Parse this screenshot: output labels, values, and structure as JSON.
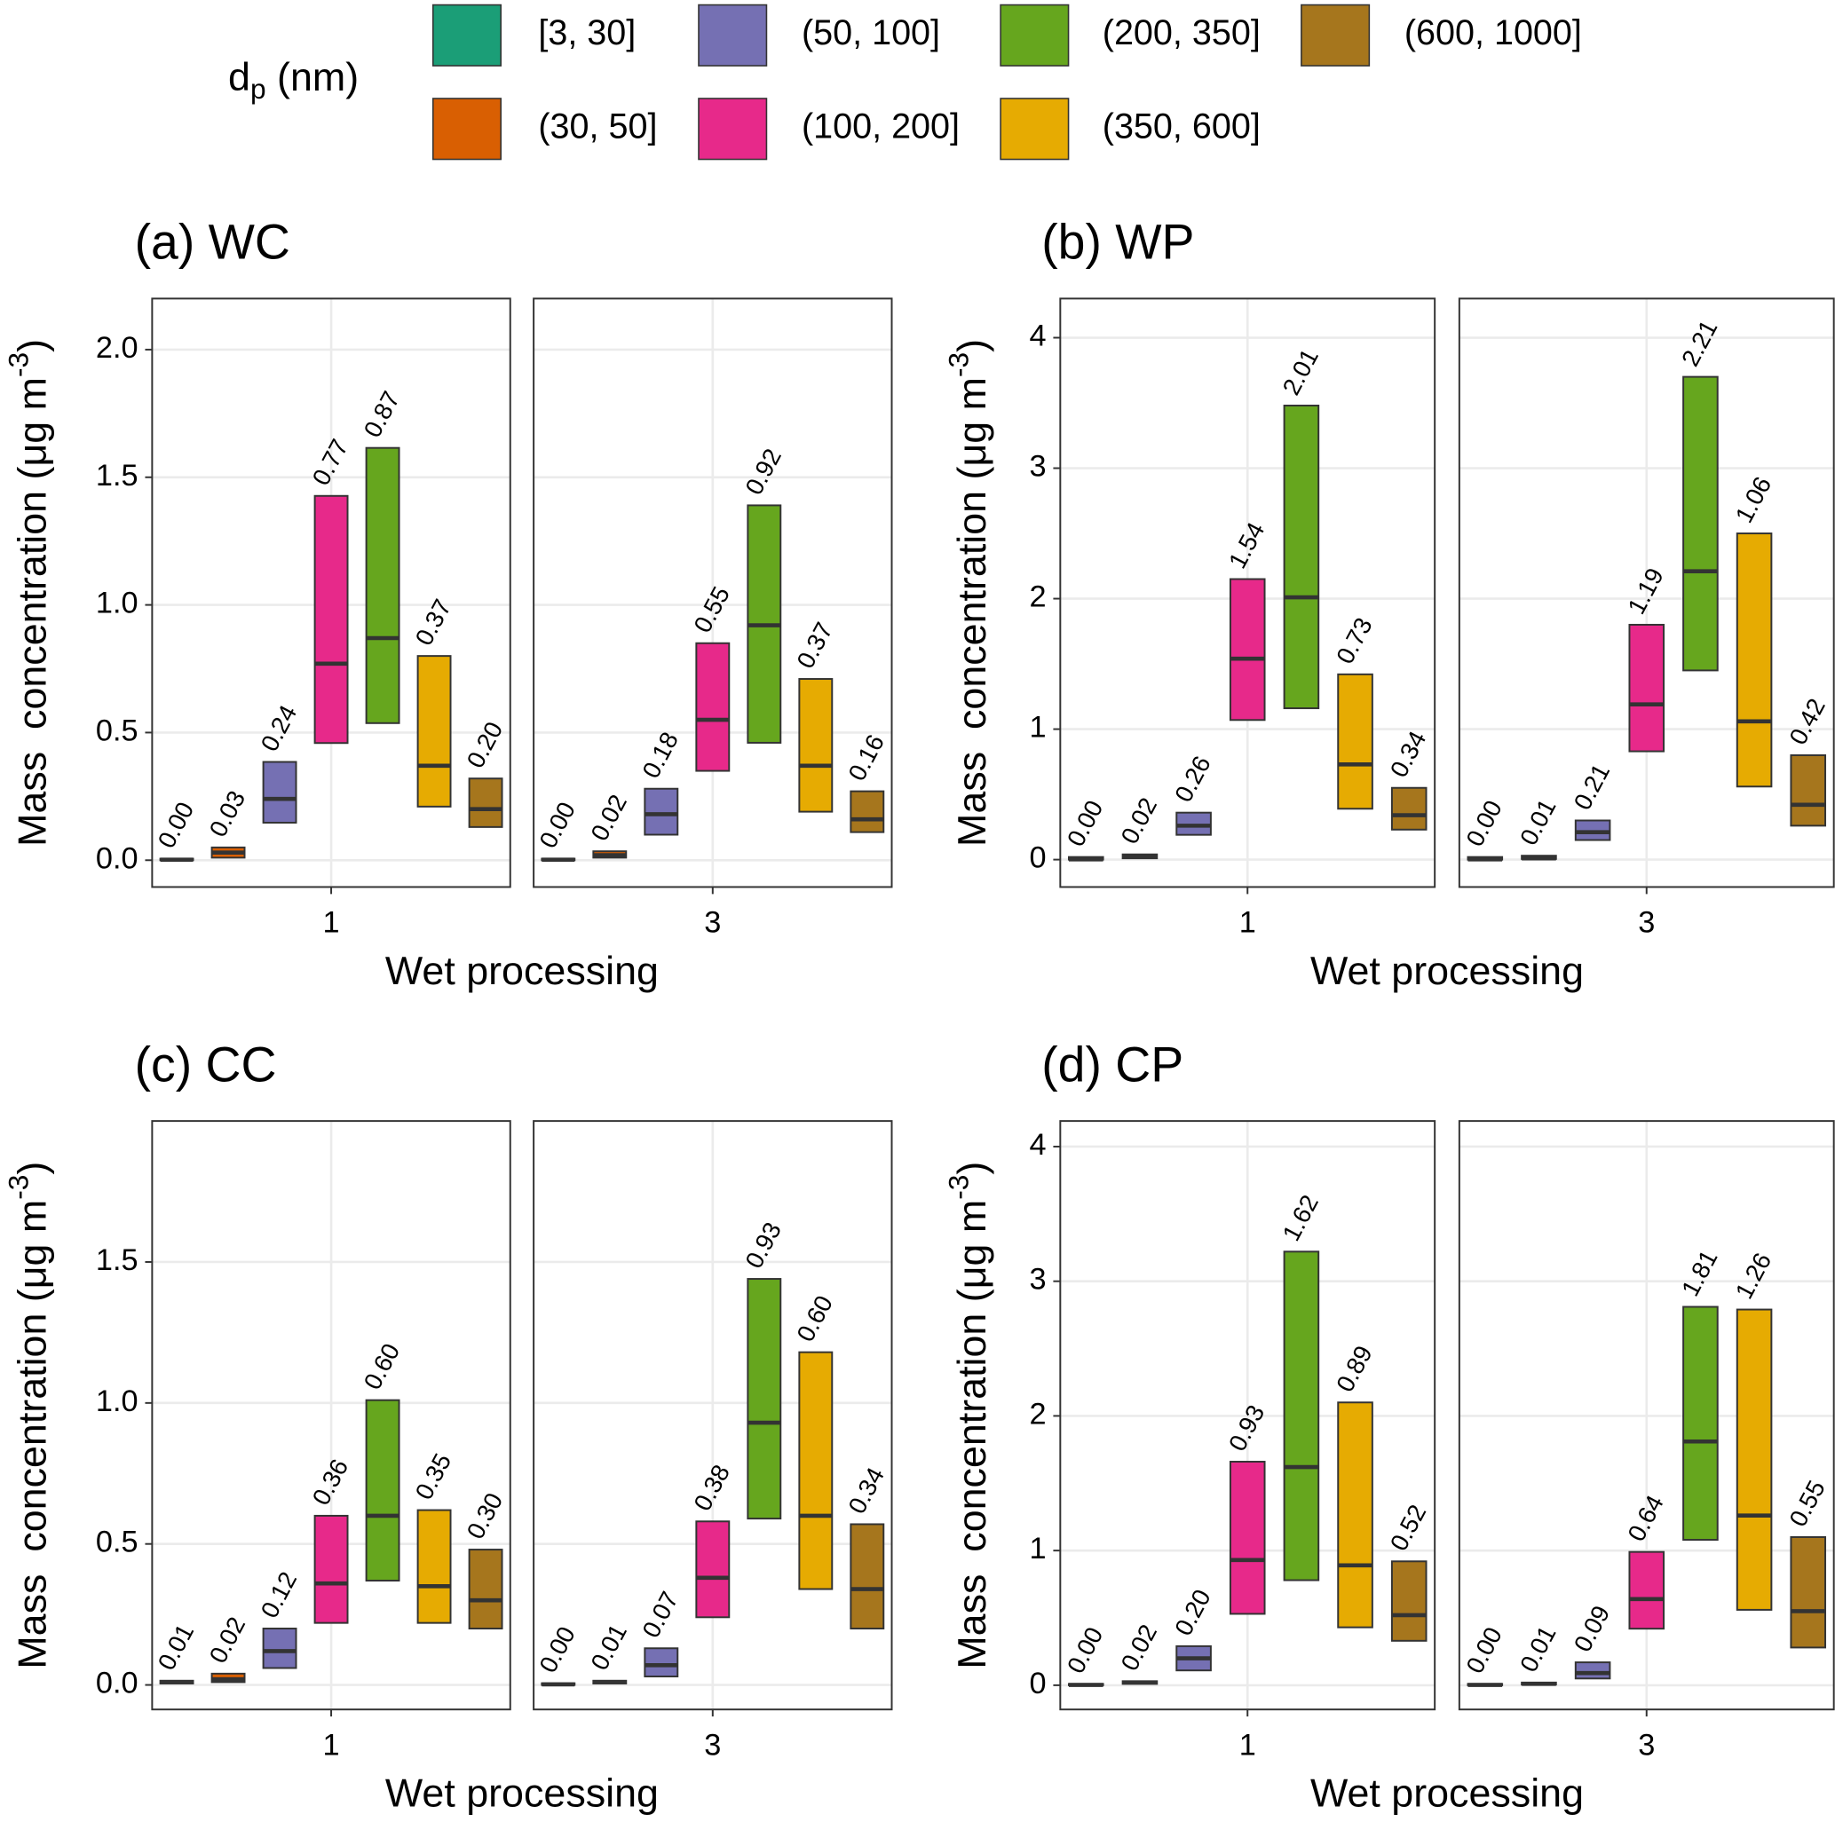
{
  "legend_title": [
    "d",
    "p",
    " (nm)"
  ],
  "chart_data": [
    {
      "type": "box",
      "title": "(a) WC",
      "x_label": "Wet processing",
      "y_label": [
        "Mass  concentration (μg m",
        "-3",
        ")"
      ],
      "categories": [
        "1",
        "3"
      ],
      "ylim": [
        -0.105,
        2.2
      ],
      "yticks": [
        {
          "value": 0,
          "label": "0.0"
        },
        0.5,
        {
          "value": 1,
          "label": "1.0"
        },
        1.5,
        {
          "value": 2,
          "label": "2.0"
        }
      ],
      "grid": true,
      "series": [
        {
          "name": "[3, 30]",
          "color": "#1b9e77",
          "values": [
            0.002,
            0.002
          ],
          "low": [
            0,
            0
          ],
          "high": [
            0.006,
            0.006
          ],
          "value_labels": [
            "0.00",
            "0.00"
          ]
        },
        {
          "name": "(30, 50]",
          "color": "#d95f02",
          "values": [
            0.03,
            0.02
          ],
          "low": [
            0.01,
            0.01
          ],
          "high": [
            0.05,
            0.035
          ],
          "value_labels": [
            "0.03",
            "0.02"
          ]
        },
        {
          "name": "(50, 100]",
          "color": "#7570b3",
          "values": [
            0.24,
            0.18
          ],
          "low": [
            0.147,
            0.1
          ],
          "high": [
            0.385,
            0.28
          ],
          "value_labels": [
            "0.24",
            "0.18"
          ]
        },
        {
          "name": "(100, 200]",
          "color": "#e7298a",
          "values": [
            0.77,
            0.55
          ],
          "low": [
            0.459,
            0.35
          ],
          "high": [
            1.427,
            0.85
          ],
          "value_labels": [
            "0.77",
            "0.55"
          ]
        },
        {
          "name": "(200, 350]",
          "color": "#66a61e",
          "values": [
            0.87,
            0.92
          ],
          "low": [
            0.537,
            0.46
          ],
          "high": [
            1.615,
            1.39
          ],
          "value_labels": [
            "0.87",
            "0.92"
          ]
        },
        {
          "name": "(350, 600]",
          "color": "#e6ab02",
          "values": [
            0.37,
            0.37
          ],
          "low": [
            0.21,
            0.19
          ],
          "high": [
            0.8,
            0.71
          ],
          "value_labels": [
            "0.37",
            "0.37"
          ]
        },
        {
          "name": "(600, 1000]",
          "color": "#a6761d",
          "values": [
            0.2,
            0.16
          ],
          "low": [
            0.13,
            0.11
          ],
          "high": [
            0.32,
            0.27
          ],
          "value_labels": [
            "0.20",
            "0.16"
          ]
        }
      ]
    },
    {
      "type": "box",
      "title": "(b) WP",
      "x_label": "Wet processing",
      "y_label": [
        "Mass  concentration (μg m",
        "-3",
        ")"
      ],
      "categories": [
        "1",
        "3"
      ],
      "ylim": [
        -0.21,
        4.3
      ],
      "yticks": [
        0,
        1,
        2,
        3,
        4
      ],
      "grid": true,
      "series": [
        {
          "name": "[3, 30]",
          "color": "#1b9e77",
          "values": [
            0.002,
            0.002
          ],
          "low": [
            0,
            0
          ],
          "high": [
            0.02,
            0.02
          ],
          "value_labels": [
            "0.00",
            "0.00"
          ]
        },
        {
          "name": "(30, 50]",
          "color": "#d95f02",
          "values": [
            0.02,
            0.01
          ],
          "low": [
            0.01,
            0.005
          ],
          "high": [
            0.04,
            0.03
          ],
          "value_labels": [
            "0.02",
            "0.01"
          ]
        },
        {
          "name": "(50, 100]",
          "color": "#7570b3",
          "values": [
            0.26,
            0.21
          ],
          "low": [
            0.19,
            0.15
          ],
          "high": [
            0.36,
            0.3
          ],
          "value_labels": [
            "0.26",
            "0.21"
          ]
        },
        {
          "name": "(100, 200]",
          "color": "#e7298a",
          "values": [
            1.54,
            1.19
          ],
          "low": [
            1.07,
            0.83
          ],
          "high": [
            2.15,
            1.8
          ],
          "value_labels": [
            "1.54",
            "1.19"
          ]
        },
        {
          "name": "(200, 350]",
          "color": "#66a61e",
          "values": [
            2.01,
            2.21
          ],
          "low": [
            1.16,
            1.45
          ],
          "high": [
            3.48,
            3.7
          ],
          "value_labels": [
            "2.01",
            "2.21"
          ]
        },
        {
          "name": "(350, 600]",
          "color": "#e6ab02",
          "values": [
            0.73,
            1.06
          ],
          "low": [
            0.39,
            0.56
          ],
          "high": [
            1.42,
            2.5
          ],
          "value_labels": [
            "0.73",
            "1.06"
          ]
        },
        {
          "name": "(600, 1000]",
          "color": "#a6761d",
          "values": [
            0.34,
            0.42
          ],
          "low": [
            0.23,
            0.26
          ],
          "high": [
            0.55,
            0.8
          ],
          "value_labels": [
            "0.34",
            "0.42"
          ]
        }
      ]
    },
    {
      "type": "box",
      "title": "(c) CC",
      "x_label": "Wet processing",
      "y_label": [
        "Mass  concentration (μg m",
        "-3",
        ")"
      ],
      "categories": [
        "1",
        "3"
      ],
      "ylim": [
        -0.087,
        2.0
      ],
      "yticks": [
        {
          "value": 0,
          "label": "0.0"
        },
        0.5,
        {
          "value": 1,
          "label": "1.0"
        },
        1.5
      ],
      "grid": true,
      "series": [
        {
          "name": "[3, 30]",
          "color": "#1b9e77",
          "values": [
            0.01,
            0.002
          ],
          "low": [
            0.005,
            0
          ],
          "high": [
            0.015,
            0.006
          ],
          "value_labels": [
            "0.01",
            "0.00"
          ]
        },
        {
          "name": "(30, 50]",
          "color": "#d95f02",
          "values": [
            0.02,
            0.01
          ],
          "low": [
            0.01,
            0.005
          ],
          "high": [
            0.04,
            0.015
          ],
          "value_labels": [
            "0.02",
            "0.01"
          ]
        },
        {
          "name": "(50, 100]",
          "color": "#7570b3",
          "values": [
            0.12,
            0.07
          ],
          "low": [
            0.06,
            0.03
          ],
          "high": [
            0.2,
            0.13
          ],
          "value_labels": [
            "0.12",
            "0.07"
          ]
        },
        {
          "name": "(100, 200]",
          "color": "#e7298a",
          "values": [
            0.36,
            0.38
          ],
          "low": [
            0.22,
            0.24
          ],
          "high": [
            0.6,
            0.58
          ],
          "value_labels": [
            "0.36",
            "0.38"
          ]
        },
        {
          "name": "(200, 350]",
          "color": "#66a61e",
          "values": [
            0.6,
            0.93
          ],
          "low": [
            0.37,
            0.59
          ],
          "high": [
            1.01,
            1.44
          ],
          "value_labels": [
            "0.60",
            "0.93"
          ]
        },
        {
          "name": "(350, 600]",
          "color": "#e6ab02",
          "values": [
            0.35,
            0.6
          ],
          "low": [
            0.22,
            0.34
          ],
          "high": [
            0.62,
            1.18
          ],
          "value_labels": [
            "0.35",
            "0.60"
          ]
        },
        {
          "name": "(600, 1000]",
          "color": "#a6761d",
          "values": [
            0.3,
            0.34
          ],
          "low": [
            0.2,
            0.2
          ],
          "high": [
            0.48,
            0.57
          ],
          "value_labels": [
            "0.30",
            "0.34"
          ]
        }
      ]
    },
    {
      "type": "box",
      "title": "(d) CP",
      "x_label": "Wet processing",
      "y_label": [
        "Mass  concentration (μg m",
        "-3",
        ")"
      ],
      "categories": [
        "1",
        "3"
      ],
      "ylim": [
        -0.18,
        4.19
      ],
      "yticks": [
        0,
        1,
        2,
        3,
        4
      ],
      "grid": true,
      "series": [
        {
          "name": "[3, 30]",
          "color": "#1b9e77",
          "values": [
            0.002,
            0.002
          ],
          "low": [
            0,
            0
          ],
          "high": [
            0.01,
            0.01
          ],
          "value_labels": [
            "0.00",
            "0.00"
          ]
        },
        {
          "name": "(30, 50]",
          "color": "#d95f02",
          "values": [
            0.02,
            0.01
          ],
          "low": [
            0.01,
            0.005
          ],
          "high": [
            0.03,
            0.02
          ],
          "value_labels": [
            "0.02",
            "0.01"
          ]
        },
        {
          "name": "(50, 100]",
          "color": "#7570b3",
          "values": [
            0.2,
            0.09
          ],
          "low": [
            0.11,
            0.05
          ],
          "high": [
            0.29,
            0.17
          ],
          "value_labels": [
            "0.20",
            "0.09"
          ]
        },
        {
          "name": "(100, 200]",
          "color": "#e7298a",
          "values": [
            0.93,
            0.64
          ],
          "low": [
            0.53,
            0.42
          ],
          "high": [
            1.66,
            0.99
          ],
          "value_labels": [
            "0.93",
            "0.64"
          ]
        },
        {
          "name": "(200, 350]",
          "color": "#66a61e",
          "values": [
            1.62,
            1.81
          ],
          "low": [
            0.78,
            1.08
          ],
          "high": [
            3.22,
            2.81
          ],
          "value_labels": [
            "1.62",
            "1.81"
          ]
        },
        {
          "name": "(350, 600]",
          "color": "#e6ab02",
          "values": [
            0.89,
            1.26
          ],
          "low": [
            0.43,
            0.56
          ],
          "high": [
            2.1,
            2.79
          ],
          "value_labels": [
            "0.89",
            "1.26"
          ]
        },
        {
          "name": "(600, 1000]",
          "color": "#a6761d",
          "values": [
            0.52,
            0.55
          ],
          "low": [
            0.33,
            0.28
          ],
          "high": [
            0.92,
            1.1
          ],
          "value_labels": [
            "0.52",
            "0.55"
          ]
        }
      ]
    }
  ]
}
